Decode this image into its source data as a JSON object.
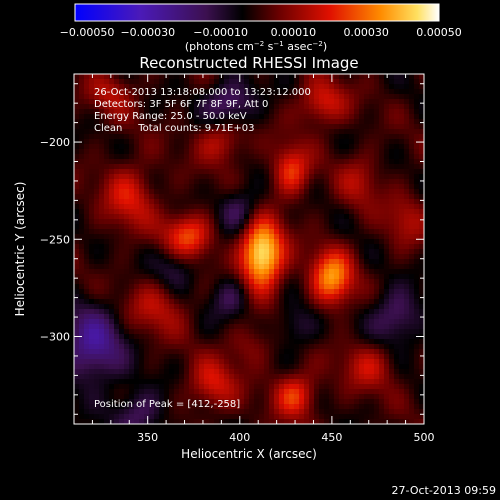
{
  "colorbar": {
    "ticks": [
      "−0.00050",
      "−0.00030",
      "−0.00010",
      "0.00010",
      "0.00030",
      "0.00050"
    ],
    "range": [
      -0.0005,
      0.0005
    ],
    "units_prefix": "(photons cm",
    "units_exp1": "−2",
    "units_mid1": " s",
    "units_exp2": "−1",
    "units_mid2": " asec",
    "units_exp3": "−2",
    "units_suffix": ")"
  },
  "chart_data": {
    "type": "heatmap",
    "title": "Reconstructed RHESSI Image",
    "xlabel": "Heliocentric X (arcsec)",
    "ylabel": "Heliocentric Y (arcsec)",
    "xlim": [
      310,
      500
    ],
    "ylim": [
      -345,
      -165
    ],
    "x_ticks": [
      "350",
      "400",
      "450",
      "500"
    ],
    "x_tick_values": [
      350,
      400,
      450,
      500
    ],
    "y_ticks": [
      "−200",
      "−250",
      "−300"
    ],
    "y_tick_values": [
      -200,
      -250,
      -300
    ],
    "annotations": [
      "26-Oct-2013 13:18:08.000 to 13:23:12.000",
      "Detectors: 3F 5F 6F 7F 8F 9F, Att 0",
      "Energy Range: 25.0 - 50.0 keV",
      "Clean     Total counts: 9.71E+03"
    ],
    "peak_label": "Position of Peak = [412,-258]",
    "peak": [
      412,
      -258
    ],
    "sources": [
      {
        "x": 412,
        "y": -258,
        "amp": 0.0005,
        "sx": 8,
        "sy": 12
      },
      {
        "x": 450,
        "y": -270,
        "amp": 0.00034,
        "sx": 8,
        "sy": 10
      },
      {
        "x": 372,
        "y": -248,
        "amp": 0.00026,
        "sx": 9,
        "sy": 8
      },
      {
        "x": 428,
        "y": -215,
        "amp": 0.00024,
        "sx": 7,
        "sy": 9
      },
      {
        "x": 445,
        "y": -180,
        "amp": 0.0002,
        "sx": 9,
        "sy": 8
      },
      {
        "x": 340,
        "y": -228,
        "amp": 0.00018,
        "sx": 10,
        "sy": 12
      },
      {
        "x": 390,
        "y": -200,
        "amp": 0.00016,
        "sx": 9,
        "sy": 8
      },
      {
        "x": 430,
        "y": -330,
        "amp": 0.00024,
        "sx": 8,
        "sy": 8
      },
      {
        "x": 385,
        "y": -325,
        "amp": 0.00018,
        "sx": 9,
        "sy": 9
      },
      {
        "x": 355,
        "y": -285,
        "amp": 0.00014,
        "sx": 12,
        "sy": 10
      },
      {
        "x": 470,
        "y": -315,
        "amp": 0.00015,
        "sx": 10,
        "sy": 9
      },
      {
        "x": 490,
        "y": -240,
        "amp": 0.00012,
        "sx": 8,
        "sy": 10
      },
      {
        "x": 330,
        "y": -175,
        "amp": 0.00012,
        "sx": 9,
        "sy": 8
      },
      {
        "x": 465,
        "y": -220,
        "amp": 0.00012,
        "sx": 8,
        "sy": 10
      },
      {
        "x": 405,
        "y": -305,
        "amp": 0.0001,
        "sx": 9,
        "sy": 8
      },
      {
        "x": 320,
        "y": -305,
        "amp": -0.00025,
        "sx": 12,
        "sy": 14
      },
      {
        "x": 395,
        "y": -180,
        "amp": -0.0002,
        "sx": 10,
        "sy": 8
      },
      {
        "x": 485,
        "y": -290,
        "amp": -0.00018,
        "sx": 10,
        "sy": 10
      },
      {
        "x": 400,
        "y": -235,
        "amp": -0.00016,
        "sx": 8,
        "sy": 8
      },
      {
        "x": 395,
        "y": -280,
        "amp": -0.00014,
        "sx": 8,
        "sy": 8
      },
      {
        "x": 345,
        "y": -340,
        "amp": -0.00016,
        "sx": 10,
        "sy": 9
      },
      {
        "x": 365,
        "y": -265,
        "amp": -0.00012,
        "sx": 8,
        "sy": 8
      },
      {
        "x": 430,
        "y": -295,
        "amp": -0.00012,
        "sx": 8,
        "sy": 8
      }
    ]
  },
  "footer": {
    "timestamp": "27-Oct-2013 09:59"
  }
}
